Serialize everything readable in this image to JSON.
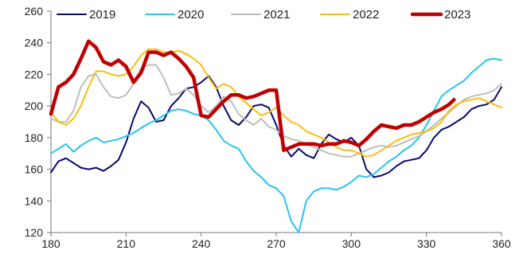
{
  "chart_data": {
    "type": "line",
    "title": "",
    "xlabel": "",
    "ylabel": "",
    "xlim": [
      180,
      360
    ],
    "ylim": [
      120,
      260
    ],
    "xticks": [
      180,
      210,
      240,
      270,
      300,
      330,
      360
    ],
    "yticks": [
      120,
      140,
      160,
      180,
      200,
      220,
      240,
      260
    ],
    "grid": false,
    "legend": "top",
    "series": [
      {
        "name": "2019",
        "color": "#0a0a6e",
        "x": [
          180,
          183,
          186,
          189,
          192,
          195,
          198,
          201,
          204,
          207,
          210,
          213,
          216,
          219,
          222,
          225,
          228,
          231,
          234,
          237,
          240,
          243,
          246,
          249,
          252,
          255,
          258,
          261,
          264,
          267,
          270,
          273,
          276,
          279,
          282,
          285,
          288,
          291,
          294,
          297,
          300,
          303,
          306,
          309,
          312,
          315,
          318,
          321,
          324,
          327,
          330,
          333,
          336,
          339,
          342,
          345,
          348,
          351,
          354,
          357,
          360
        ],
        "values": [
          158,
          165,
          167,
          164,
          161,
          160,
          161,
          159,
          162,
          166,
          177,
          192,
          203,
          199,
          190,
          191,
          200,
          205,
          211,
          212,
          215,
          219,
          212,
          200,
          191,
          188,
          193,
          200,
          201,
          199,
          188,
          175,
          168,
          173,
          169,
          167,
          176,
          182,
          179,
          177,
          180,
          175,
          160,
          155,
          156,
          158,
          162,
          165,
          166,
          167,
          172,
          180,
          185,
          187,
          190,
          193,
          198,
          200,
          201,
          204,
          212
        ]
      },
      {
        "name": "2020",
        "color": "#27c4ee",
        "x": [
          180,
          183,
          186,
          189,
          192,
          195,
          198,
          201,
          204,
          207,
          210,
          213,
          216,
          219,
          222,
          225,
          228,
          231,
          234,
          237,
          240,
          243,
          246,
          249,
          252,
          255,
          258,
          261,
          264,
          267,
          270,
          273,
          276,
          279,
          282,
          285,
          288,
          291,
          294,
          297,
          300,
          303,
          306,
          309,
          312,
          315,
          318,
          321,
          324,
          327,
          330,
          333,
          336,
          339,
          342,
          345,
          348,
          351,
          354,
          357,
          360
        ],
        "values": [
          170,
          173,
          176,
          171,
          175,
          178,
          180,
          177,
          178,
          179,
          181,
          183,
          186,
          189,
          191,
          194,
          197,
          198,
          197,
          195,
          194,
          191,
          185,
          178,
          175,
          173,
          165,
          159,
          155,
          150,
          148,
          143,
          127,
          120,
          140,
          146,
          148,
          148,
          147,
          149,
          152,
          156,
          155,
          157,
          161,
          165,
          168,
          172,
          175,
          180,
          188,
          197,
          206,
          210,
          213,
          216,
          221,
          225,
          229,
          230,
          229
        ]
      },
      {
        "name": "2021",
        "color": "#bdbdbd",
        "x": [
          180,
          183,
          186,
          189,
          192,
          195,
          198,
          201,
          204,
          207,
          210,
          213,
          216,
          219,
          222,
          225,
          228,
          231,
          234,
          237,
          240,
          243,
          246,
          249,
          252,
          255,
          258,
          261,
          264,
          267,
          270,
          273,
          276,
          279,
          282,
          285,
          288,
          291,
          294,
          297,
          300,
          303,
          306,
          309,
          312,
          315,
          318,
          321,
          324,
          327,
          330,
          333,
          336,
          339,
          342,
          345,
          348,
          351,
          354,
          357,
          360
        ],
        "values": [
          192,
          190,
          190,
          197,
          212,
          219,
          220,
          212,
          206,
          205,
          207,
          214,
          224,
          226,
          226,
          218,
          207,
          208,
          211,
          207,
          200,
          196,
          200,
          206,
          203,
          195,
          191,
          188,
          192,
          187,
          185,
          181,
          179,
          178,
          176,
          174,
          172,
          170,
          169,
          168,
          168,
          170,
          172,
          174,
          175,
          174,
          175,
          177,
          179,
          181,
          184,
          188,
          192,
          196,
          200,
          204,
          206,
          207,
          208,
          210,
          214
        ]
      },
      {
        "name": "2022",
        "color": "#f9be0f",
        "x": [
          180,
          183,
          186,
          189,
          192,
          195,
          198,
          201,
          204,
          207,
          210,
          213,
          216,
          219,
          222,
          225,
          228,
          231,
          234,
          237,
          240,
          243,
          246,
          249,
          252,
          255,
          258,
          261,
          264,
          267,
          270,
          273,
          276,
          279,
          282,
          285,
          288,
          291,
          294,
          297,
          300,
          303,
          306,
          309,
          312,
          315,
          318,
          321,
          324,
          327,
          330,
          333,
          336,
          339,
          342,
          345,
          348,
          351,
          354,
          357,
          360
        ],
        "values": [
          196,
          190,
          188,
          192,
          200,
          212,
          222,
          222,
          220,
          219,
          220,
          225,
          232,
          236,
          236,
          234,
          234,
          235,
          233,
          230,
          226,
          218,
          211,
          214,
          212,
          206,
          202,
          198,
          194,
          196,
          199,
          194,
          190,
          188,
          184,
          182,
          180,
          177,
          174,
          172,
          172,
          170,
          168,
          169,
          172,
          175,
          178,
          180,
          182,
          183,
          184,
          186,
          190,
          197,
          201,
          203,
          204,
          205,
          203,
          201,
          199
        ]
      },
      {
        "name": "2023",
        "color": "#c00000",
        "x": [
          180,
          183,
          186,
          189,
          192,
          195,
          198,
          201,
          204,
          207,
          210,
          213,
          216,
          219,
          222,
          225,
          228,
          231,
          234,
          237,
          240,
          243,
          246,
          249,
          252,
          255,
          258,
          261,
          264,
          267,
          270,
          273,
          276,
          279,
          282,
          285,
          288,
          291,
          294,
          297,
          300,
          303,
          306,
          309,
          312,
          315,
          318,
          321,
          324,
          327,
          330,
          333,
          336,
          339,
          341
        ],
        "values": [
          195,
          212,
          215,
          220,
          230,
          241,
          237,
          228,
          226,
          229,
          225,
          215,
          221,
          234,
          234,
          232,
          234,
          230,
          225,
          218,
          194,
          193,
          198,
          203,
          207,
          207,
          205,
          206,
          208,
          210,
          210,
          172,
          174,
          176,
          176,
          176,
          175,
          176,
          176,
          178,
          177,
          175,
          179,
          184,
          188,
          187,
          186,
          188,
          188,
          190,
          193,
          196,
          198,
          201,
          204
        ]
      }
    ]
  }
}
